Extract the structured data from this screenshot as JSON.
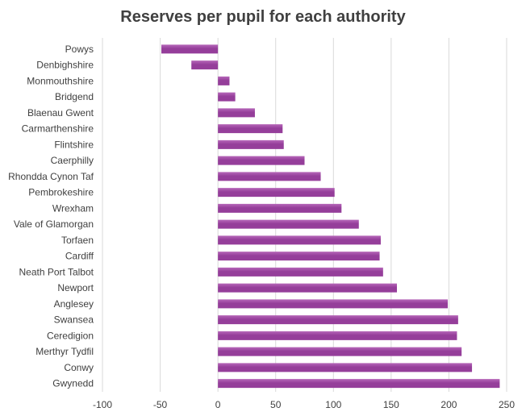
{
  "chart_data": {
    "type": "bar",
    "orientation": "horizontal",
    "title": "Reserves per pupil for each authority",
    "xlabel": "",
    "ylabel": "",
    "categories": [
      "Powys",
      "Denbighshire",
      "Monmouthshire",
      "Bridgend",
      "Blaenau Gwent",
      "Carmarthenshire",
      "Flintshire",
      "Caerphilly",
      "Rhondda Cynon Taf",
      "Pembrokeshire",
      "Wrexham",
      "Vale of Glamorgan",
      "Torfaen",
      "Cardiff",
      "Neath Port Talbot",
      "Newport",
      "Anglesey",
      "Swansea",
      "Ceredigion",
      "Merthyr Tydfil",
      "Conwy",
      "Gwynedd"
    ],
    "values": [
      -49,
      -23,
      10,
      15,
      32,
      56,
      57,
      75,
      89,
      101,
      107,
      122,
      141,
      140,
      143,
      155,
      199,
      208,
      207,
      211,
      220,
      244
    ],
    "xlim": [
      -100,
      250
    ],
    "xticks": [
      "-100",
      "-50",
      "0",
      "50",
      "100",
      "150",
      "200",
      "250"
    ],
    "grid": true,
    "legend": "none",
    "bar_color": "#953e9a",
    "bar_color_light": "#b667b9",
    "grid_color": "#d9d9d9"
  }
}
